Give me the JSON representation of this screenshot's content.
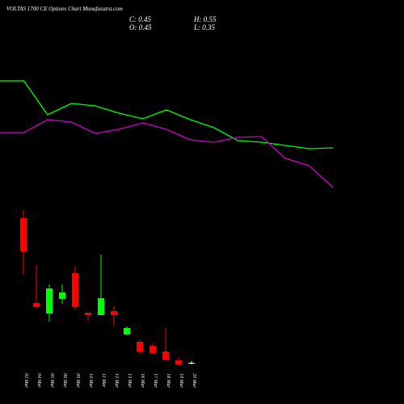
{
  "title": "VOLTAS 1700 CE Options Chart Munafasutra.com",
  "quote": {
    "close": "C: 0.45",
    "high": "H: 0.55",
    "open": "O: 0.45",
    "low": "L: 0.35"
  },
  "chart_data": [
    {
      "type": "line",
      "categories": [
        null,
        null,
        null,
        null,
        null,
        null,
        null,
        null,
        null,
        null,
        null,
        null,
        null,
        null,
        null
      ],
      "ylim": [
        0,
        200
      ],
      "series": [
        {
          "color": "#00ff00",
          "values": [
            150,
            150,
            108,
            122,
            119,
            110,
            103,
            114,
            102,
            92,
            76,
            74,
            70,
            66,
            67
          ]
        },
        {
          "color": "#cc00cc",
          "values": [
            86,
            86,
            102,
            99,
            85,
            90,
            98,
            90,
            77,
            74,
            80,
            81,
            54,
            45,
            18
          ]
        }
      ]
    },
    {
      "type": "candlestick",
      "categories": [
        "02 Mar",
        "04 Mar",
        "05 Mar",
        "06 Mar",
        "09 Mar",
        "10 Mar",
        "11 Mar",
        "12 Mar",
        "13 Mar",
        "16 Mar",
        "17 Mar",
        "18 Mar",
        "19 Mar",
        "20 Mar"
      ],
      "open": [
        9.4,
        4.15,
        3.5,
        4.4,
        6.0,
        3.55,
        3.4,
        3.65,
        2.2,
        1.75,
        1.5,
        1.15,
        0.6,
        0.45
      ],
      "high": [
        9.9,
        6.5,
        5.3,
        5.3,
        6.4,
        3.55,
        7.15,
        3.95,
        2.7,
        1.85,
        1.65,
        2.6,
        0.8,
        0.55
      ],
      "low": [
        5.9,
        3.85,
        3.0,
        4.1,
        3.75,
        3.05,
        3.4,
        2.75,
        2.15,
        1.05,
        1.0,
        0.6,
        0.3,
        0.35
      ],
      "close": [
        7.35,
        3.9,
        5.05,
        4.8,
        3.9,
        3.4,
        4.45,
        3.4,
        2.6,
        1.15,
        1.05,
        0.65,
        0.35,
        0.45
      ],
      "up_color": "#00ff00",
      "down_color": "#ff0000",
      "flat_color": "#ffffff",
      "ylim": [
        0,
        10
      ]
    }
  ]
}
